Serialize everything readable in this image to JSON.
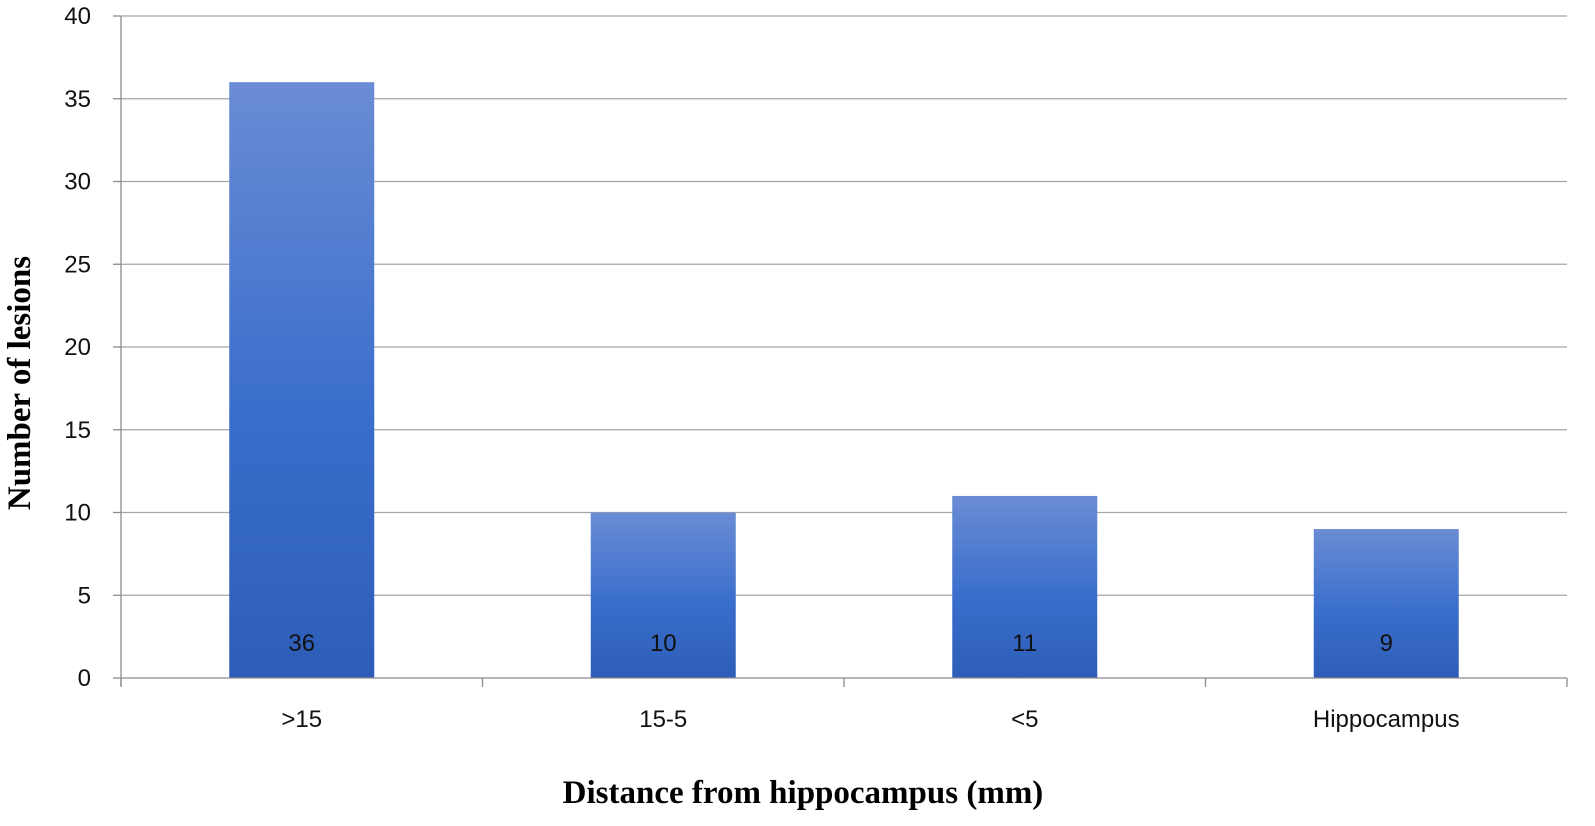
{
  "chart_data": {
    "type": "bar",
    "title": "",
    "xlabel": "Distance from hippocampus (mm)",
    "ylabel": "Number of lesions",
    "categories": [
      ">15",
      "15-5",
      "<5",
      "Hippocampus"
    ],
    "values": [
      36,
      10,
      11,
      9
    ],
    "data_labels": [
      "36",
      "10",
      "11",
      "9"
    ],
    "ylim": [
      0,
      40
    ],
    "yticks": [
      0,
      5,
      10,
      15,
      20,
      25,
      30,
      35,
      40
    ],
    "grid": true,
    "legend": "none",
    "colors": {
      "bar_top": "#6A8CD4",
      "bar_middle": "#3A6ECC",
      "bar_bottom": "#2D5DB8",
      "grid": "#A6A6A6",
      "axis": "#8C8C8C"
    }
  }
}
